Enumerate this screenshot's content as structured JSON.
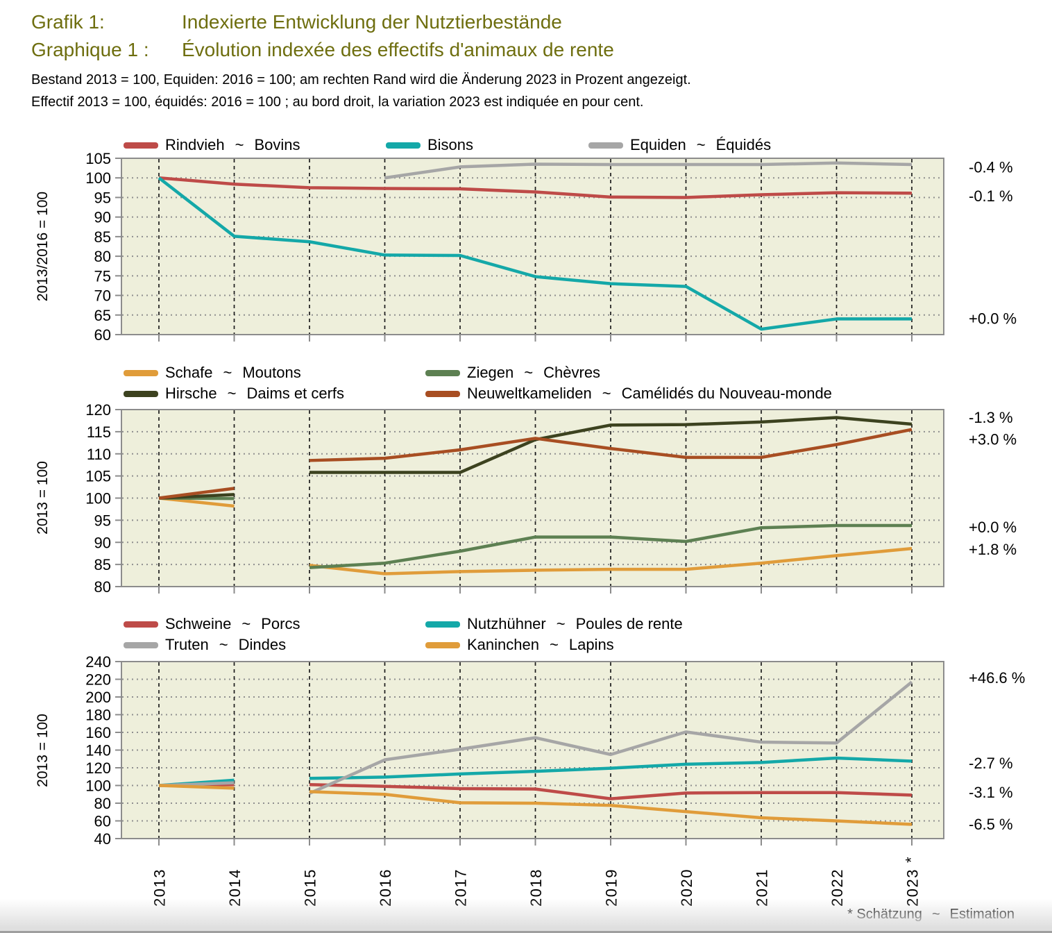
{
  "page": {
    "title_de": {
      "label": "Grafik 1:",
      "text": "Indexierte Entwicklung der Nutztierbestände"
    },
    "title_fr": {
      "label": "Graphique 1 :",
      "text": "Évolution indexée des effectifs d'animaux de rente"
    },
    "subtitle_de": "Bestand 2013 = 100, Equiden: 2016 = 100; am rechten Rand wird die Änderung 2023 in Prozent angezeigt.",
    "subtitle_fr": "Effectif 2013 = 100, équidés: 2016 = 100 ; au bord droit, la variation 2023 est indiquée en pour cent.",
    "legend_tilde": "~",
    "x_footnote_marker": "*",
    "footnote": {
      "marker_text": "* Schätzung",
      "tilde": "~",
      "text": "Estimation"
    },
    "title_color": "#6E6E0F",
    "plot_bg_color": "#EEEFDB"
  },
  "chart_data": [
    {
      "type": "line",
      "y_title": "2013/2016 = 100",
      "ylim": [
        60,
        105
      ],
      "ytick_step": 5,
      "grid": {
        "horizontal_dotted": true,
        "vertical_dashed": true
      },
      "legend_position": "top",
      "x": [
        2013,
        2014,
        2015,
        2016,
        2017,
        2018,
        2019,
        2020,
        2021,
        2022,
        2023
      ],
      "series": [
        {
          "name_de": "Rindvieh",
          "name_fr": "Bovins",
          "color": "#BE4B48",
          "pct_label": "-0.1 %",
          "pct_label_y": 95.4,
          "segments": [
            {
              "x": [
                2013,
                2014,
                2015,
                2016,
                2017,
                2018,
                2019,
                2020,
                2021,
                2022,
                2023
              ],
              "y": [
                100,
                98.4,
                97.5,
                97.3,
                97.2,
                96.4,
                95.1,
                95.0,
                95.7,
                96.2,
                96.1
              ]
            }
          ]
        },
        {
          "name_de": "Bisons",
          "name_fr": "",
          "color": "#14A8A8",
          "pct_label": "+0.0 %",
          "pct_label_y": 64.2,
          "segments": [
            {
              "x": [
                2013,
                2014,
                2015,
                2016,
                2017,
                2018,
                2019,
                2020,
                2021,
                2022,
                2023
              ],
              "y": [
                100,
                85.1,
                83.7,
                80.3,
                80.2,
                74.8,
                73.0,
                72.3,
                61.4,
                64.0,
                64.0
              ]
            }
          ]
        },
        {
          "name_de": "Equiden",
          "name_fr": "Équidés",
          "color": "#A6A6A6",
          "pct_label": "-0.4 %",
          "pct_label_y": 102.8,
          "segments": [
            {
              "x": [
                2016,
                2017,
                2018,
                2019,
                2020,
                2021,
                2022,
                2023
              ],
              "y": [
                100,
                102.8,
                103.5,
                103.4,
                103.4,
                103.4,
                103.8,
                103.4
              ]
            }
          ]
        }
      ]
    },
    {
      "type": "line",
      "y_title": "2013 = 100",
      "ylim": [
        80,
        120
      ],
      "ytick_step": 5,
      "grid": {
        "horizontal_dotted": true,
        "vertical_dashed": true
      },
      "legend_position": "top",
      "x": [
        2013,
        2014,
        2015,
        2016,
        2017,
        2018,
        2019,
        2020,
        2021,
        2022,
        2023
      ],
      "series": [
        {
          "name_de": "Schafe",
          "name_fr": "Moutons",
          "color": "#E09C3A",
          "pct_label": "+1.8 %",
          "pct_label_y": 88.5,
          "segments": [
            {
              "x": [
                2013,
                2014
              ],
              "y": [
                100,
                98.2
              ]
            },
            {
              "x": [
                2015,
                2016,
                2017,
                2018,
                2019,
                2020,
                2021,
                2022,
                2023
              ],
              "y": [
                84.8,
                82.9,
                83.4,
                83.7,
                83.9,
                83.9,
                85.3,
                87.0,
                88.6
              ]
            }
          ]
        },
        {
          "name_de": "Ziegen",
          "name_fr": "Chèvres",
          "color": "#5D8052",
          "pct_label": "+0.0 %",
          "pct_label_y": 93.5,
          "segments": [
            {
              "x": [
                2013,
                2014
              ],
              "y": [
                100,
                99.9
              ]
            },
            {
              "x": [
                2015,
                2016,
                2017,
                2018,
                2019,
                2020,
                2021,
                2022,
                2023
              ],
              "y": [
                84.3,
                85.3,
                88.0,
                91.2,
                91.2,
                90.2,
                93.3,
                93.8,
                93.8
              ]
            }
          ]
        },
        {
          "name_de": "Hirsche",
          "name_fr": "Daims et cerfs",
          "color": "#3C421F",
          "pct_label": "-1.3 %",
          "pct_label_y": 118.3,
          "segments": [
            {
              "x": [
                2013,
                2014
              ],
              "y": [
                100,
                100.8
              ]
            },
            {
              "x": [
                2015,
                2016,
                2017,
                2018,
                2019,
                2020,
                2021,
                2022,
                2023
              ],
              "y": [
                105.8,
                105.8,
                105.8,
                113.2,
                116.5,
                116.6,
                117.2,
                118.2,
                116.7
              ]
            }
          ]
        },
        {
          "name_de": "Neuweltkameliden",
          "name_fr": "Camélidés du Nouveau-monde",
          "color": "#A84E22",
          "pct_label": "+3.0 %",
          "pct_label_y": 113.3,
          "segments": [
            {
              "x": [
                2013,
                2014
              ],
              "y": [
                100,
                102.2
              ]
            },
            {
              "x": [
                2015,
                2016,
                2017,
                2018,
                2019,
                2020,
                2021,
                2022,
                2023
              ],
              "y": [
                108.5,
                109.0,
                110.9,
                113.5,
                111.2,
                109.2,
                109.2,
                112.1,
                115.5
              ]
            }
          ]
        }
      ]
    },
    {
      "type": "line",
      "y_title": "2013 = 100",
      "ylim": [
        40,
        240
      ],
      "ytick_step": 20,
      "grid": {
        "horizontal_dotted": true,
        "vertical_dashed": true
      },
      "legend_position": "top",
      "x": [
        2013,
        2014,
        2015,
        2016,
        2017,
        2018,
        2019,
        2020,
        2021,
        2022,
        2023
      ],
      "series": [
        {
          "name_de": "Schweine",
          "name_fr": "Porcs",
          "color": "#BE4B48",
          "pct_label": "-3.1 %",
          "pct_label_y": 92.5,
          "segments": [
            {
              "x": [
                2013,
                2014
              ],
              "y": [
                100,
                101
              ]
            },
            {
              "x": [
                2015,
                2016,
                2017,
                2018,
                2019,
                2020,
                2021,
                2022,
                2023
              ],
              "y": [
                101,
                99,
                96.5,
                96,
                85,
                91.5,
                92,
                92,
                89.1
              ]
            }
          ]
        },
        {
          "name_de": "Nutzhühner",
          "name_fr": "Poules de rente",
          "color": "#14A8A8",
          "pct_label": "-2.7 %",
          "pct_label_y": 125.5,
          "segments": [
            {
              "x": [
                2013,
                2014
              ],
              "y": [
                100,
                106
              ]
            },
            {
              "x": [
                2015,
                2016,
                2017,
                2018,
                2019,
                2020,
                2021,
                2022,
                2023
              ],
              "y": [
                108,
                109.5,
                113,
                116,
                119.5,
                124,
                126,
                131,
                127.5
              ]
            }
          ]
        },
        {
          "name_de": "Truten",
          "name_fr": "Dindes",
          "color": "#A6A6A6",
          "pct_label": "+46.6 %",
          "pct_label_y": 222,
          "segments": [
            {
              "x": [
                2013,
                2014
              ],
              "y": [
                100,
                103
              ]
            },
            {
              "x": [
                2015,
                2016,
                2017,
                2018,
                2019,
                2020,
                2021,
                2022,
                2023
              ],
              "y": [
                91,
                129,
                141,
                154,
                135,
                160.5,
                149,
                148,
                217
              ]
            }
          ]
        },
        {
          "name_de": "Kaninchen",
          "name_fr": "Lapins",
          "color": "#E09C3A",
          "pct_label": "-6.5 %",
          "pct_label_y": 56.5,
          "segments": [
            {
              "x": [
                2013,
                2014
              ],
              "y": [
                100,
                97
              ]
            },
            {
              "x": [
                2015,
                2016,
                2017,
                2018,
                2019,
                2020,
                2021,
                2022,
                2023
              ],
              "y": [
                93,
                90,
                80.5,
                80,
                77.5,
                70.5,
                63.5,
                60,
                56.1
              ]
            }
          ]
        }
      ]
    }
  ]
}
